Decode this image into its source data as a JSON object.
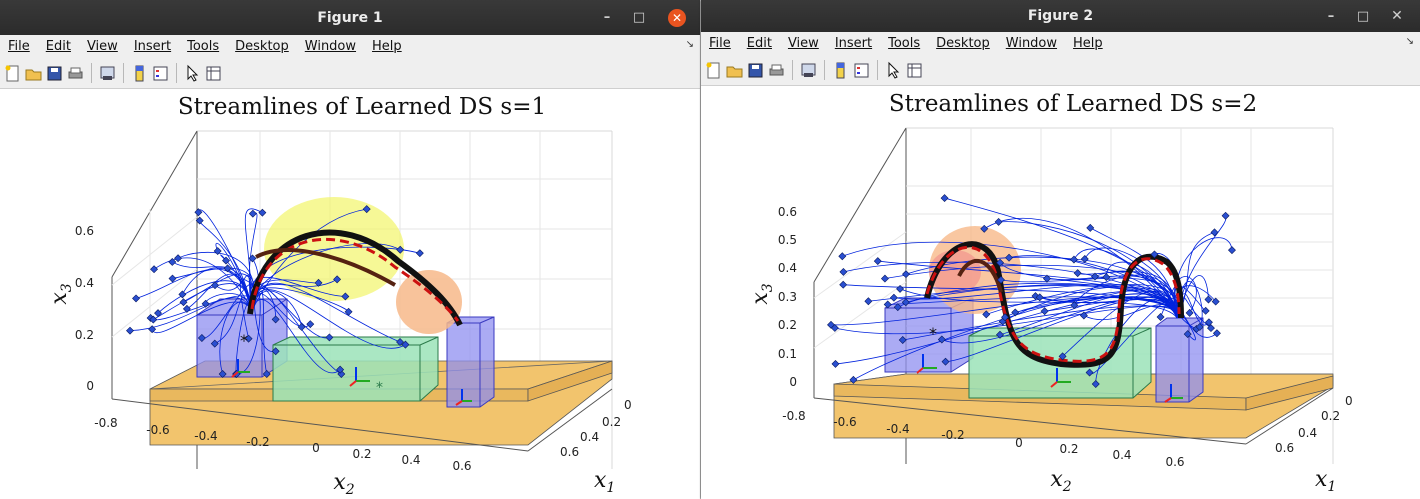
{
  "menu": [
    {
      "label": "File"
    },
    {
      "label": "Edit"
    },
    {
      "label": "View"
    },
    {
      "label": "Insert"
    },
    {
      "label": "Tools"
    },
    {
      "label": "Desktop"
    },
    {
      "label": "Window"
    },
    {
      "label": "Help"
    }
  ],
  "toolbar_icons": [
    "new-figure-icon",
    "open-file-icon",
    "save-icon",
    "print-icon",
    "link-plot-icon",
    "insert-colorbar-icon",
    "insert-legend-icon",
    "edit-plot-icon",
    "property-inspector-icon"
  ],
  "colors": {
    "titlebar": "#2d2d2d",
    "close_button": "#e95420",
    "table": "#f2c46d",
    "box_blue": "#8f8ff0",
    "box_green": "#9be3b8",
    "streamline": "#0022dd",
    "demo": "#cc1111",
    "yellow_region": "#f2f56a",
    "orange_region": "#f7b98a"
  },
  "windows": [
    {
      "title": "Figure 1",
      "plot_title": "Streamlines of Learned DS s=1",
      "chart_data": {
        "type": "3d-streamlines",
        "title": "Streamlines of Learned DS s=1",
        "xlabel": "x_1",
        "ylabel": "x_2",
        "zlabel": "x_3",
        "x1_ticks": [
          "0",
          "0.2",
          "0.4",
          "0.6"
        ],
        "x2_ticks": [
          "-0.8",
          "-0.6",
          "-0.4",
          "-0.2",
          "0",
          "0.2",
          "0.4",
          "0.6"
        ],
        "x3_ticks": [
          "0",
          "0.2",
          "0.4",
          "0.6"
        ],
        "zlim": [
          0,
          0.7
        ]
      },
      "axis_labels": {
        "x1": "x",
        "x1_sub": "1",
        "x2": "x",
        "x2_sub": "2",
        "x3": "x",
        "x3_sub": "3"
      }
    },
    {
      "title": "Figure 2",
      "plot_title": "Streamlines of Learned DS s=2",
      "chart_data": {
        "type": "3d-streamlines",
        "title": "Streamlines of Learned DS s=2",
        "xlabel": "x_1",
        "ylabel": "x_2",
        "zlabel": "x_3",
        "x1_ticks": [
          "0",
          "0.2",
          "0.4",
          "0.6"
        ],
        "x2_ticks": [
          "-0.8",
          "-0.6",
          "-0.4",
          "-0.2",
          "0",
          "0.2",
          "0.4",
          "0.6"
        ],
        "x3_ticks": [
          "0",
          "0.1",
          "0.2",
          "0.3",
          "0.4",
          "0.5",
          "0.6"
        ],
        "zlim": [
          0,
          0.65
        ]
      },
      "axis_labels": {
        "x1": "x",
        "x1_sub": "1",
        "x2": "x",
        "x2_sub": "2",
        "x3": "x",
        "x3_sub": "3"
      }
    }
  ]
}
